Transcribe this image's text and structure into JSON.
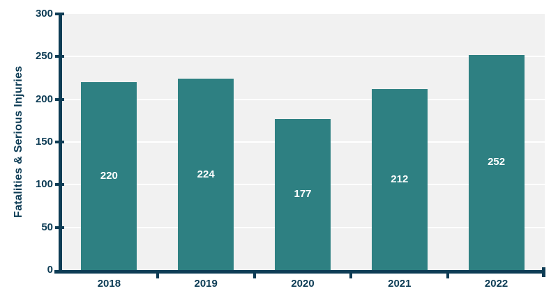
{
  "chart_data": {
    "type": "bar",
    "categories": [
      "2018",
      "2019",
      "2020",
      "2021",
      "2022"
    ],
    "values": [
      220,
      224,
      177,
      212,
      252
    ],
    "value_labels": [
      "220",
      "224",
      "177",
      "212",
      "252"
    ],
    "title": "",
    "xlabel": "",
    "ylabel": "Fatalities & Serious Injuries",
    "ylim": [
      0,
      300
    ],
    "yticks": [
      0,
      50,
      100,
      150,
      200,
      250,
      300
    ],
    "grid": "horizontal gridlines, white, behind bars",
    "legend": "none",
    "value_label_position": "center of bar",
    "colors": {
      "bar": "#2e8082",
      "axis": "#0d3c55",
      "tick_label": "#0d3c55",
      "plot_background": "#f1f1f1",
      "gridline": "#ffffff",
      "value_label": "#ffffff",
      "page_background": "#ffffff"
    }
  }
}
